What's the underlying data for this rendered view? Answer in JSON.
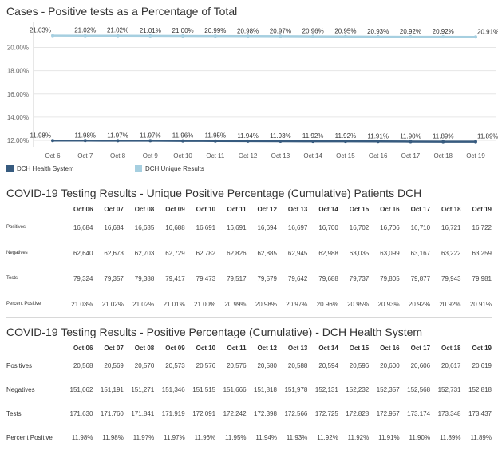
{
  "chart_title": "Cases - Positive tests as a Percentage of Total",
  "chart_data": {
    "type": "line",
    "title": "Cases - Positive tests as a Percentage of Total",
    "x": [
      "Oct 6",
      "Oct 7",
      "Oct 8",
      "Oct 9",
      "Oct 10",
      "Oct 11",
      "Oct 12",
      "Oct 13",
      "Oct 14",
      "Oct 15",
      "Oct 16",
      "Oct 17",
      "Oct 18",
      "Oct 19"
    ],
    "y_ticks": [
      "12.00%",
      "14.00%",
      "16.00%",
      "18.00%",
      "20.00%"
    ],
    "ylim": [
      12.0,
      21.0
    ],
    "grid": true,
    "legend_position": "bottom-left",
    "series": [
      {
        "name": "DCH Unique Results",
        "color": "#a6cfe0",
        "values": [
          21.03,
          21.02,
          21.02,
          21.01,
          21.0,
          20.99,
          20.98,
          20.97,
          20.96,
          20.95,
          20.93,
          20.92,
          20.92,
          20.91
        ],
        "labels": [
          "21.03%",
          "21.02%",
          "21.02%",
          "21.01%",
          "21.00%",
          "20.99%",
          "20.98%",
          "20.97%",
          "20.96%",
          "20.95%",
          "20.93%",
          "20.92%",
          "20.92%",
          "20.91%"
        ]
      },
      {
        "name": "DCH Health System",
        "color": "#375b7f",
        "values": [
          11.98,
          11.98,
          11.97,
          11.97,
          11.96,
          11.95,
          11.94,
          11.93,
          11.92,
          11.92,
          11.91,
          11.9,
          11.89,
          11.89
        ],
        "labels": [
          "11.98%",
          "11.98%",
          "11.97%",
          "11.97%",
          "11.96%",
          "11.95%",
          "11.94%",
          "11.93%",
          "11.92%",
          "11.92%",
          "11.91%",
          "11.90%",
          "11.89%",
          "11.89%"
        ]
      }
    ]
  },
  "legend": [
    {
      "name": "DCH Health System",
      "color": "#375b7f"
    },
    {
      "name": "DCH Unique Results",
      "color": "#a6cfe0"
    }
  ],
  "table1": {
    "title": "COVID-19 Testing Results - Unique Positive Percentage (Cumulative) Patients DCH",
    "columns": [
      "Oct 06",
      "Oct 07",
      "Oct 08",
      "Oct 09",
      "Oct 10",
      "Oct 11",
      "Oct 12",
      "Oct 13",
      "Oct 14",
      "Oct 15",
      "Oct 16",
      "Oct 17",
      "Oct 18",
      "Oct 19"
    ],
    "rows": [
      {
        "label": "Positives",
        "values": [
          "16,684",
          "16,684",
          "16,685",
          "16,688",
          "16,691",
          "16,691",
          "16,694",
          "16,697",
          "16,700",
          "16,702",
          "16,706",
          "16,710",
          "16,721",
          "16,722"
        ]
      },
      {
        "label": "Negatives",
        "values": [
          "62,640",
          "62,673",
          "62,703",
          "62,729",
          "62,782",
          "62,826",
          "62,885",
          "62,945",
          "62,988",
          "63,035",
          "63,099",
          "63,167",
          "63,222",
          "63,259"
        ]
      },
      {
        "label": "Tests",
        "values": [
          "79,324",
          "79,357",
          "79,388",
          "79,417",
          "79,473",
          "79,517",
          "79,579",
          "79,642",
          "79,688",
          "79,737",
          "79,805",
          "79,877",
          "79,943",
          "79,981"
        ]
      },
      {
        "label": "Percent Positive",
        "values": [
          "21.03%",
          "21.02%",
          "21.02%",
          "21.01%",
          "21.00%",
          "20.99%",
          "20.98%",
          "20.97%",
          "20.96%",
          "20.95%",
          "20.93%",
          "20.92%",
          "20.92%",
          "20.91%"
        ]
      }
    ]
  },
  "table2": {
    "title": "COVID-19 Testing Results - Positive Percentage (Cumulative) - DCH Health System",
    "columns": [
      "Oct 06",
      "Oct 07",
      "Oct 08",
      "Oct 09",
      "Oct 10",
      "Oct 11",
      "Oct 12",
      "Oct 13",
      "Oct 14",
      "Oct 15",
      "Oct 16",
      "Oct 17",
      "Oct 18",
      "Oct 19"
    ],
    "rows": [
      {
        "label": "Positives",
        "values": [
          "20,568",
          "20,569",
          "20,570",
          "20,573",
          "20,576",
          "20,576",
          "20,580",
          "20,588",
          "20,594",
          "20,596",
          "20,600",
          "20,606",
          "20,617",
          "20,619"
        ]
      },
      {
        "label": "Negatives",
        "values": [
          "151,062",
          "151,191",
          "151,271",
          "151,346",
          "151,515",
          "151,666",
          "151,818",
          "151,978",
          "152,131",
          "152,232",
          "152,357",
          "152,568",
          "152,731",
          "152,818"
        ]
      },
      {
        "label": "Tests",
        "values": [
          "171,630",
          "171,760",
          "171,841",
          "171,919",
          "172,091",
          "172,242",
          "172,398",
          "172,566",
          "172,725",
          "172,828",
          "172,957",
          "173,174",
          "173,348",
          "173,437"
        ]
      },
      {
        "label": "Percent Positive",
        "values": [
          "11.98%",
          "11.98%",
          "11.97%",
          "11.97%",
          "11.96%",
          "11.95%",
          "11.94%",
          "11.93%",
          "11.92%",
          "11.92%",
          "11.91%",
          "11.90%",
          "11.89%",
          "11.89%"
        ]
      }
    ]
  }
}
